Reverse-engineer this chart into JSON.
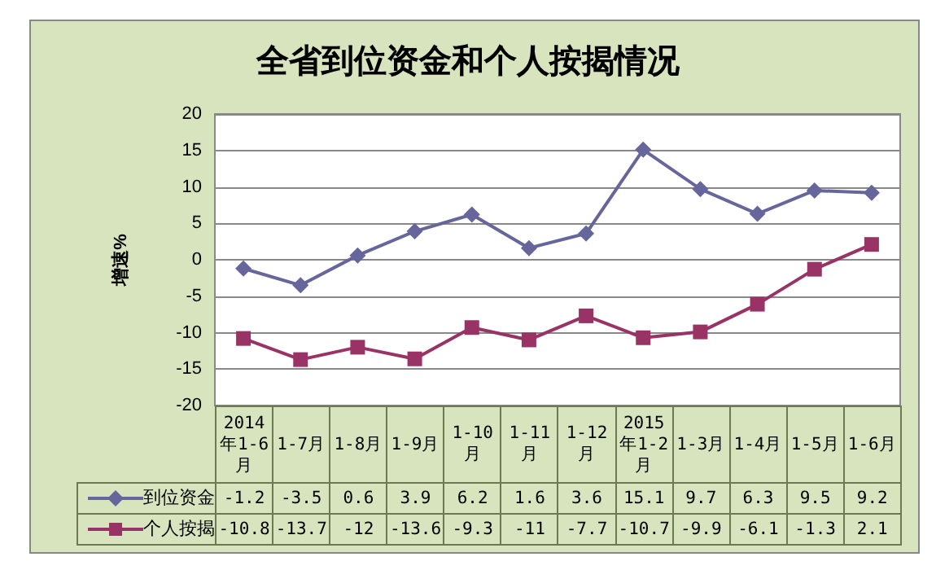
{
  "chart_data": {
    "type": "line",
    "title": "全省到位资金和个人按揭情况",
    "ylabel": "增速%",
    "categories": [
      "2014年1-6月",
      "1-7月",
      "1-8月",
      "1-9月",
      "1-10月",
      "1-11月",
      "1-12月",
      "2015年1-2月",
      "1-3月",
      "1-4月",
      "1-5月",
      "1-6月"
    ],
    "series": [
      {
        "name": "到位资金",
        "color": "#66669c",
        "marker": "diamond",
        "values": [
          -1.2,
          -3.5,
          0.6,
          3.9,
          6.2,
          1.6,
          3.6,
          15.1,
          9.7,
          6.3,
          9.5,
          9.2
        ]
      },
      {
        "name": "个人按揭",
        "color": "#993366",
        "marker": "square",
        "values": [
          -10.8,
          -13.7,
          -12,
          -13.6,
          -9.3,
          -11,
          -7.7,
          -10.7,
          -9.9,
          -6.1,
          -1.3,
          2.1
        ]
      }
    ],
    "ylim": [
      -20,
      20
    ],
    "yticks": [
      -20,
      -15,
      -10,
      -5,
      0,
      5,
      10,
      15,
      20
    ],
    "grid": "y",
    "legend": "bottom",
    "data_labels": true,
    "line_style": "solid"
  }
}
